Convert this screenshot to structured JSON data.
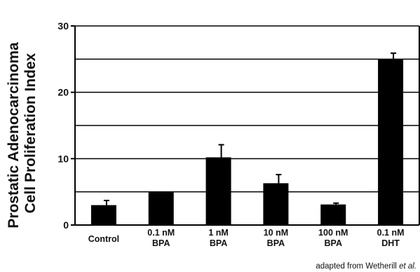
{
  "chart_data": {
    "type": "bar",
    "ylabel_lines": [
      "Prostatic Adenocarcinoma",
      "Cell Proliferation Index"
    ],
    "xlabel": "",
    "categories": [
      [
        "Control"
      ],
      [
        "0.1 nM",
        "BPA"
      ],
      [
        "1 nM",
        "BPA"
      ],
      [
        "10 nM",
        "BPA"
      ],
      [
        "100 nM",
        "BPA"
      ],
      [
        "0.1 nM",
        "DHT"
      ]
    ],
    "values": [
      3.0,
      5.0,
      10.2,
      6.3,
      3.1,
      25.0
    ],
    "errors": [
      0.7,
      0,
      1.9,
      1.3,
      0.2,
      0.9
    ],
    "ylim": [
      0,
      30
    ],
    "yticks": [
      0,
      10,
      20,
      30
    ],
    "gridlines": [
      5,
      10,
      15,
      20,
      25,
      30
    ],
    "grid": true,
    "bar_color": "#000000",
    "source_note": {
      "prefix": "adapted from Wetherill ",
      "italic": "et al."
    }
  }
}
